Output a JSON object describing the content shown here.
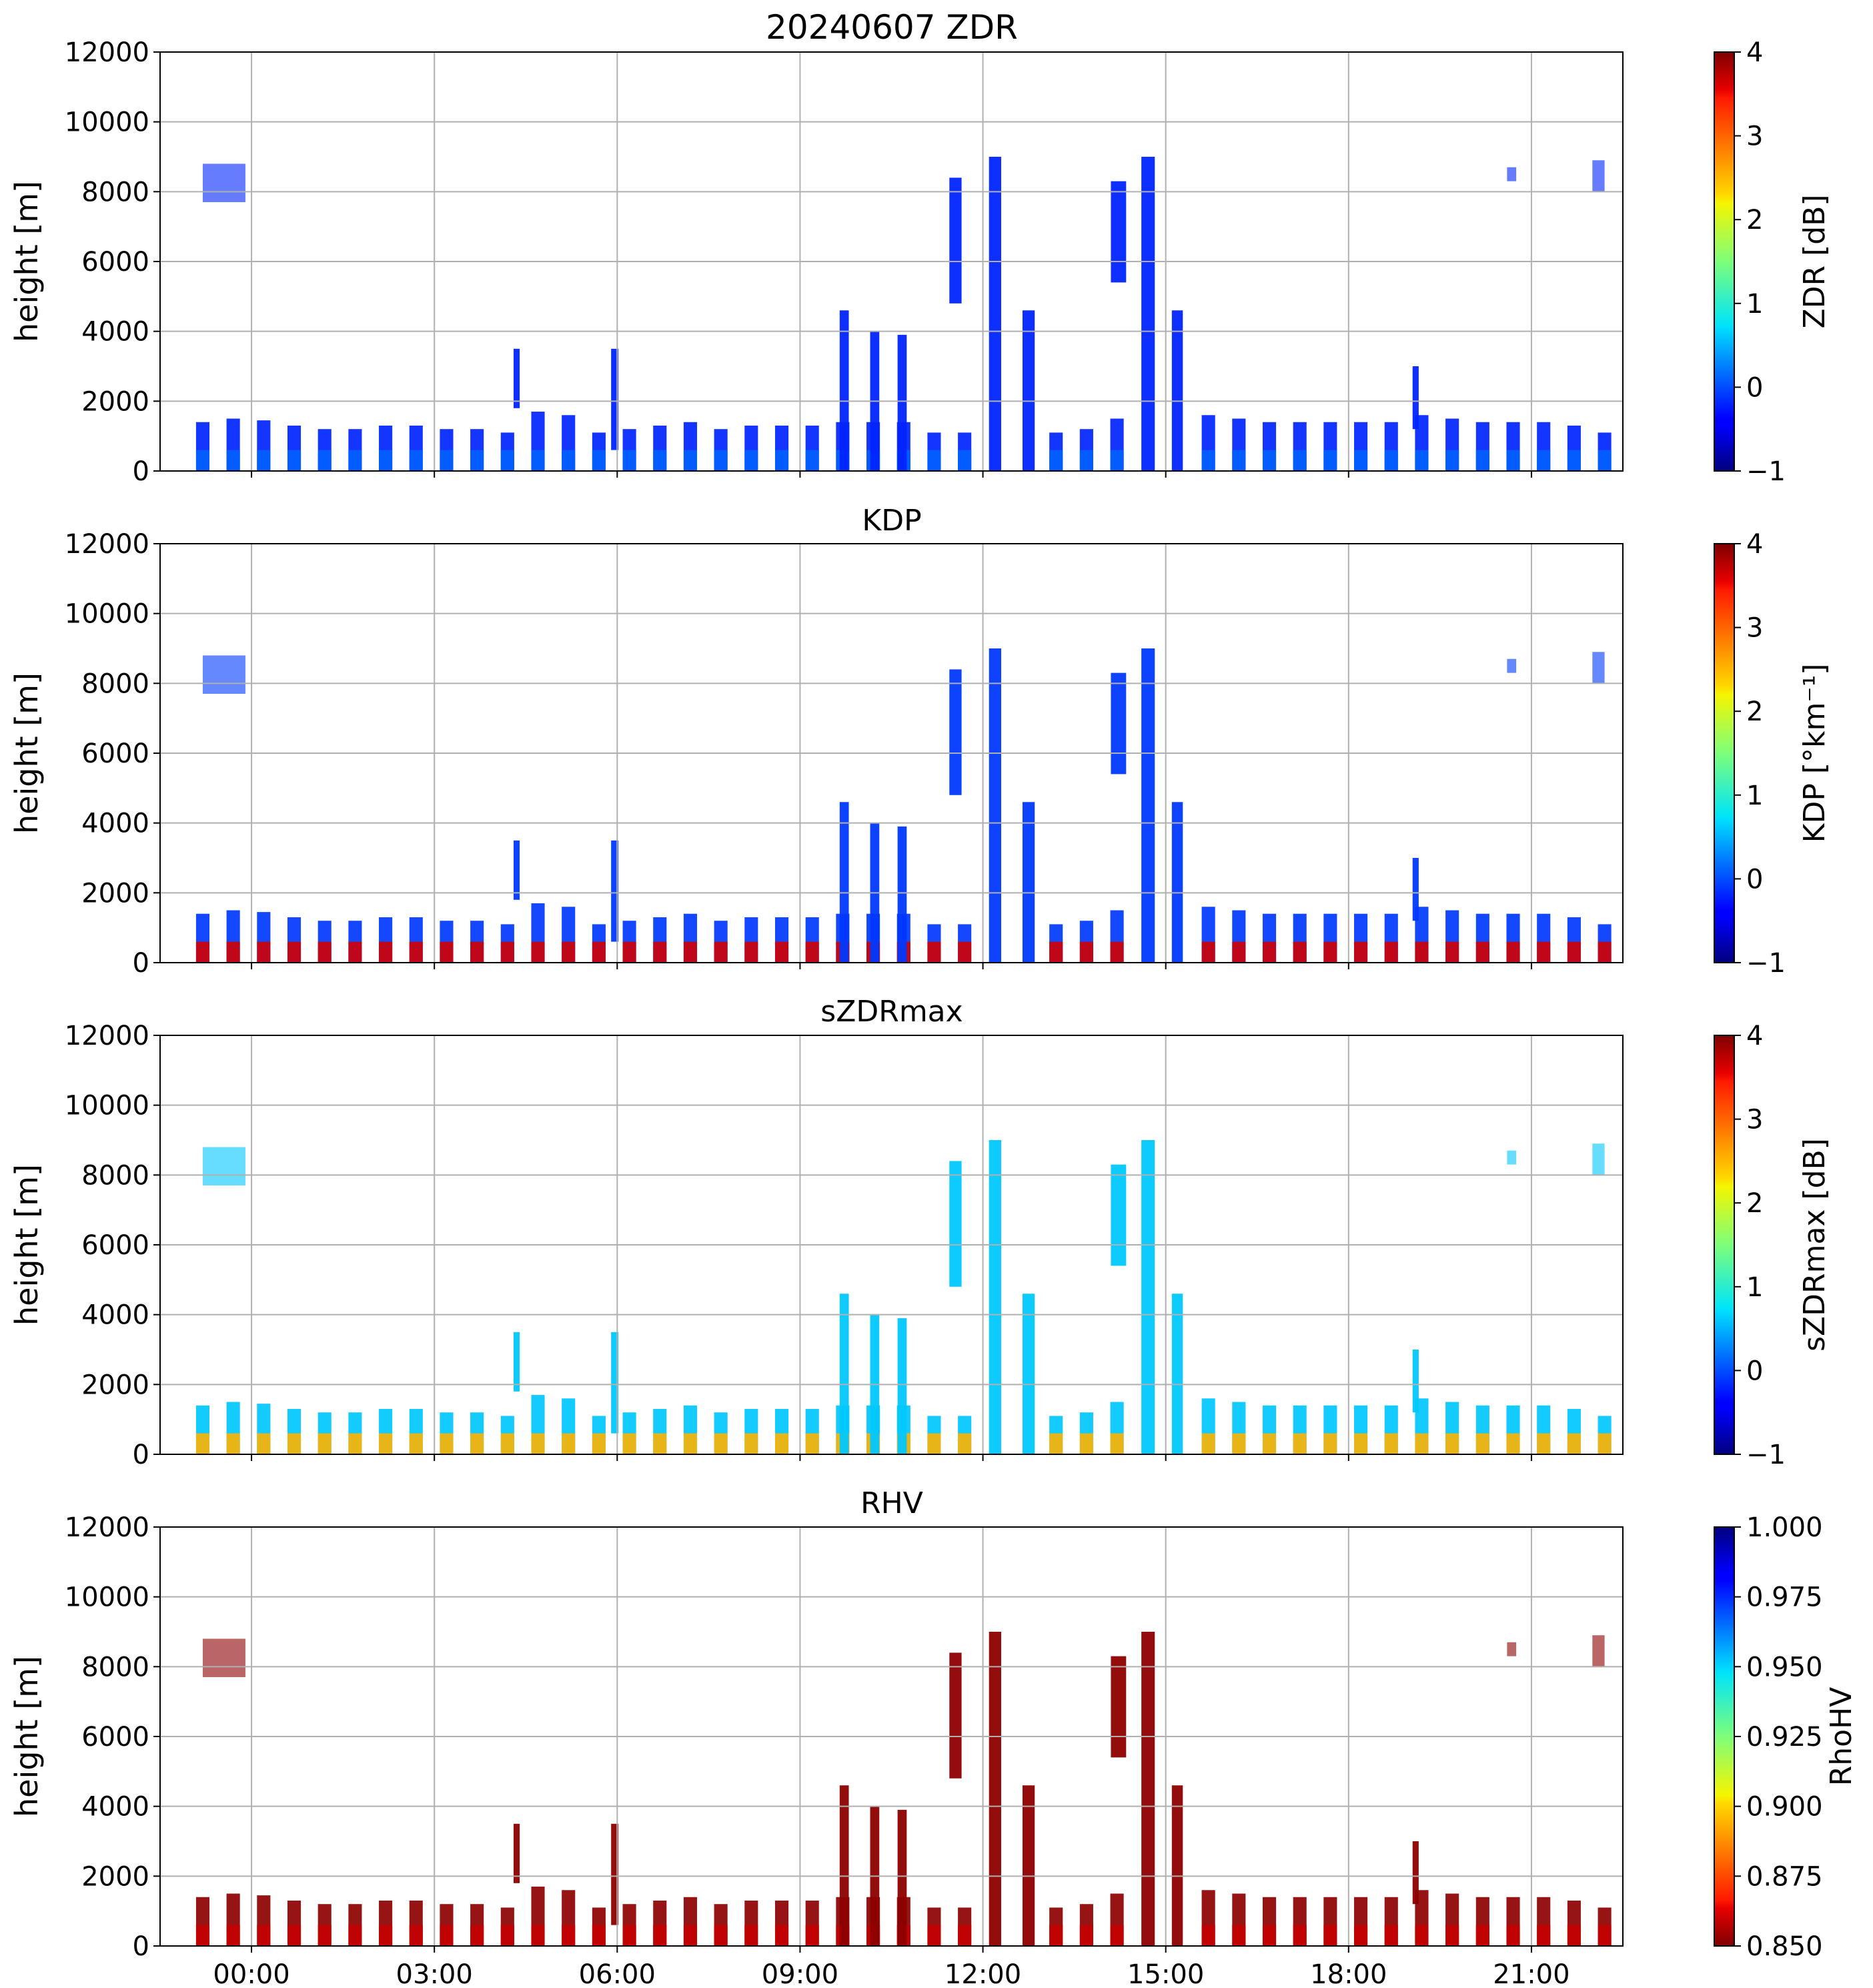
{
  "chart_data": [
    {
      "type": "heatmap",
      "title": "20240607 ZDR",
      "ylabel": "height [m]",
      "ylim": [
        0,
        12000
      ],
      "yticks": [
        0,
        2000,
        4000,
        6000,
        8000,
        10000,
        12000
      ],
      "xlim_hours": [
        -1.5,
        22.5
      ],
      "xticks": [
        "00:00",
        "03:00",
        "06:00",
        "09:00",
        "12:00",
        "15:00",
        "18:00",
        "21:00"
      ],
      "x_tick_labels_visible": false,
      "grid": true,
      "colorbar": {
        "label": "ZDR [dB]",
        "colormap": "jet",
        "range": [
          -1,
          4
        ],
        "ticks": [
          "−1",
          "0",
          "1",
          "2",
          "3",
          "4"
        ],
        "reversed": false
      },
      "background_value": -0.2,
      "low_value": 0.1
    },
    {
      "type": "heatmap",
      "title": "KDP",
      "ylabel": "height [m]",
      "ylim": [
        0,
        12000
      ],
      "yticks": [
        0,
        2000,
        4000,
        6000,
        8000,
        10000,
        12000
      ],
      "xlim_hours": [
        -1.5,
        22.5
      ],
      "xticks": [
        "00:00",
        "03:00",
        "06:00",
        "09:00",
        "12:00",
        "15:00",
        "18:00",
        "21:00"
      ],
      "x_tick_labels_visible": false,
      "grid": true,
      "colorbar": {
        "label": "KDP [°km⁻¹]",
        "colormap": "jet",
        "range": [
          -1,
          4
        ],
        "ticks": [
          "−1",
          "0",
          "1",
          "2",
          "3",
          "4"
        ],
        "reversed": false
      },
      "background_value": -0.1,
      "low_value": 3.6
    },
    {
      "type": "heatmap",
      "title": "sZDRmax",
      "ylabel": "height [m]",
      "ylim": [
        0,
        12000
      ],
      "yticks": [
        0,
        2000,
        4000,
        6000,
        8000,
        10000,
        12000
      ],
      "xlim_hours": [
        -1.5,
        22.5
      ],
      "xticks": [
        "00:00",
        "03:00",
        "06:00",
        "09:00",
        "12:00",
        "15:00",
        "18:00",
        "21:00"
      ],
      "x_tick_labels_visible": false,
      "grid": true,
      "colorbar": {
        "label": "sZDRmax [dB]",
        "colormap": "jet",
        "range": [
          -1,
          4
        ],
        "ticks": [
          "−1",
          "0",
          "1",
          "2",
          "3",
          "4"
        ],
        "reversed": false
      },
      "background_value": 0.6,
      "low_value": 2.5
    },
    {
      "type": "heatmap",
      "title": "RHV",
      "ylabel": "height [m]",
      "ylim": [
        0,
        12000
      ],
      "yticks": [
        0,
        2000,
        4000,
        6000,
        8000,
        10000,
        12000
      ],
      "xlim_hours": [
        -1.5,
        22.5
      ],
      "xticks": [
        "00:00",
        "03:00",
        "06:00",
        "09:00",
        "12:00",
        "15:00",
        "18:00",
        "21:00"
      ],
      "x_tick_labels_visible": true,
      "grid": true,
      "colorbar": {
        "label": "RhoHV",
        "colormap": "jet_r",
        "range": [
          0.85,
          1.0
        ],
        "ticks": [
          "0.850",
          "0.875",
          "0.900",
          "0.925",
          "0.950",
          "0.975",
          "1.000"
        ],
        "reversed": true
      },
      "background_value": 0.852,
      "low_value": 0.86
    }
  ],
  "echo_blocks": [
    {
      "t": -0.8,
      "top": 1400
    },
    {
      "t": -0.3,
      "top": 1500
    },
    {
      "t": 0.2,
      "top": 1450
    },
    {
      "t": 0.7,
      "top": 1300
    },
    {
      "t": 1.2,
      "top": 1200
    },
    {
      "t": 1.7,
      "top": 1200
    },
    {
      "t": 2.2,
      "top": 1300
    },
    {
      "t": 2.7,
      "top": 1300
    },
    {
      "t": 3.2,
      "top": 1200
    },
    {
      "t": 3.7,
      "top": 1200
    },
    {
      "t": 4.2,
      "top": 1100
    },
    {
      "t": 4.7,
      "top": 1700
    },
    {
      "t": 5.2,
      "top": 1600
    },
    {
      "t": 5.7,
      "top": 1100
    },
    {
      "t": 6.2,
      "top": 1200
    },
    {
      "t": 6.7,
      "top": 1300
    },
    {
      "t": 7.2,
      "top": 1400
    },
    {
      "t": 7.7,
      "top": 1200
    },
    {
      "t": 8.2,
      "top": 1300
    },
    {
      "t": 8.7,
      "top": 1300
    },
    {
      "t": 9.2,
      "top": 1300
    },
    {
      "t": 9.7,
      "top": 1400
    },
    {
      "t": 10.2,
      "top": 1400
    },
    {
      "t": 10.7,
      "top": 1400
    },
    {
      "t": 11.2,
      "top": 1100
    },
    {
      "t": 11.7,
      "top": 1100
    },
    {
      "t": 13.2,
      "top": 1100
    },
    {
      "t": 13.7,
      "top": 1200
    },
    {
      "t": 14.2,
      "top": 1500
    },
    {
      "t": 15.7,
      "top": 1600
    },
    {
      "t": 16.2,
      "top": 1500
    },
    {
      "t": 16.7,
      "top": 1400
    },
    {
      "t": 17.2,
      "top": 1400
    },
    {
      "t": 17.7,
      "top": 1400
    },
    {
      "t": 18.2,
      "top": 1400
    },
    {
      "t": 18.7,
      "top": 1400
    },
    {
      "t": 19.2,
      "top": 1600
    },
    {
      "t": 19.7,
      "top": 1500
    },
    {
      "t": 20.2,
      "top": 1400
    },
    {
      "t": 20.7,
      "top": 1400
    },
    {
      "t": 21.2,
      "top": 1400
    },
    {
      "t": 21.7,
      "top": 1300
    },
    {
      "t": 22.2,
      "top": 1100
    }
  ],
  "convective_columns": [
    {
      "t0": 9.65,
      "t1": 9.8,
      "bottom": 0,
      "top": 4600
    },
    {
      "t0": 10.15,
      "t1": 10.3,
      "bottom": 0,
      "top": 4000
    },
    {
      "t0": 10.6,
      "t1": 10.75,
      "bottom": 0,
      "top": 3900
    },
    {
      "t0": 11.45,
      "t1": 11.65,
      "bottom": 4800,
      "top": 8400
    },
    {
      "t0": 12.1,
      "t1": 12.3,
      "bottom": 0,
      "top": 9000
    },
    {
      "t0": 12.65,
      "t1": 12.85,
      "bottom": 0,
      "top": 4600
    },
    {
      "t0": 14.1,
      "t1": 14.35,
      "bottom": 5400,
      "top": 8300
    },
    {
      "t0": 14.6,
      "t1": 14.82,
      "bottom": 0,
      "top": 9000
    },
    {
      "t0": 15.1,
      "t1": 15.28,
      "bottom": 0,
      "top": 4600
    },
    {
      "t0": 5.9,
      "t1": 6.02,
      "bottom": 600,
      "top": 3500
    },
    {
      "t0": 19.05,
      "t1": 19.15,
      "bottom": 1200,
      "top": 3000
    },
    {
      "t0": 4.3,
      "t1": 4.4,
      "bottom": 1800,
      "top": 3500
    }
  ],
  "upper_patches": [
    {
      "t0": -0.8,
      "t1": -0.1,
      "bottom": 7700,
      "top": 8800
    },
    {
      "t0": 20.6,
      "t1": 20.75,
      "bottom": 8300,
      "top": 8700
    },
    {
      "t0": 22.0,
      "t1": 22.2,
      "bottom": 8000,
      "top": 8900
    }
  ]
}
